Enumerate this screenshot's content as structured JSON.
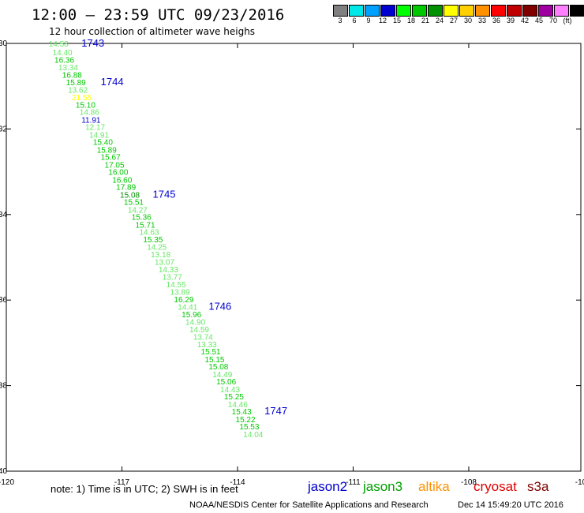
{
  "header": {
    "title": "12:00 — 23:59 UTC 09/23/2016",
    "subtitle": "12 hour collection of altimeter wave heighs"
  },
  "legend": {
    "colors": [
      "#808080",
      "#00e8e8",
      "#00a0ff",
      "#0000d0",
      "#00ff00",
      "#00c800",
      "#009000",
      "#ffff00",
      "#ffd000",
      "#ff9000",
      "#ff0000",
      "#c00000",
      "#800000",
      "#a000a0",
      "#ff80ff",
      "#000000"
    ],
    "labels": [
      "3",
      "6",
      "9",
      "12",
      "15",
      "18",
      "21",
      "24",
      "27",
      "30",
      "33",
      "36",
      "39",
      "42",
      "45",
      "70",
      "(ft)"
    ]
  },
  "chart_data": {
    "type": "scatter",
    "xlim": [
      -120,
      -10
    ],
    "ylim": [
      -40,
      -30
    ],
    "x_ticks": [
      "-120",
      "-117",
      "-114",
      "-111",
      "-108",
      "-10"
    ],
    "y_ticks": [
      "-30",
      "-32",
      "-34",
      "-36",
      "-38",
      "-40"
    ],
    "colors": {
      "light": "#66e866",
      "mid": "#00c800",
      "dark": "#009000",
      "blue": "#0000d0",
      "yellow": "#ffff00"
    },
    "points": [
      {
        "x": -118.9,
        "y": -30.0,
        "label": "14.58",
        "color": "light"
      },
      {
        "x": -118.8,
        "y": -30.2,
        "label": "14.40",
        "color": "light"
      },
      {
        "x": -118.75,
        "y": -30.38,
        "label": "16.36",
        "color": "mid"
      },
      {
        "x": -118.65,
        "y": -30.55,
        "label": "13.34",
        "color": "light"
      },
      {
        "x": -118.55,
        "y": -30.73,
        "label": "16.88",
        "color": "mid"
      },
      {
        "x": -118.45,
        "y": -30.9,
        "label": "15.89",
        "color": "mid"
      },
      {
        "x": -118.4,
        "y": -31.08,
        "label": "13.62",
        "color": "light"
      },
      {
        "x": -118.3,
        "y": -31.25,
        "label": "21.55",
        "color": "yellow"
      },
      {
        "x": -118.2,
        "y": -31.43,
        "label": "15.10",
        "color": "mid"
      },
      {
        "x": -118.1,
        "y": -31.6,
        "label": "14.86",
        "color": "light"
      },
      {
        "x": -118.05,
        "y": -31.78,
        "label": "11.91",
        "color": "blue"
      },
      {
        "x": -117.95,
        "y": -31.95,
        "label": "12.17",
        "color": "light"
      },
      {
        "x": -117.85,
        "y": -32.13,
        "label": "14.91",
        "color": "light"
      },
      {
        "x": -117.75,
        "y": -32.3,
        "label": "15.40",
        "color": "mid"
      },
      {
        "x": -117.65,
        "y": -32.48,
        "label": "15.89",
        "color": "mid"
      },
      {
        "x": -117.55,
        "y": -32.65,
        "label": "15.67",
        "color": "mid"
      },
      {
        "x": -117.45,
        "y": -32.83,
        "label": "17.05",
        "color": "mid"
      },
      {
        "x": -117.35,
        "y": -33.0,
        "label": "16.00",
        "color": "mid"
      },
      {
        "x": -117.25,
        "y": -33.18,
        "label": "16.60",
        "color": "mid"
      },
      {
        "x": -117.15,
        "y": -33.35,
        "label": "17.89",
        "color": "mid"
      },
      {
        "x": -117.05,
        "y": -33.53,
        "label": "15.08",
        "color": "dark"
      },
      {
        "x": -116.95,
        "y": -33.7,
        "label": "15.51",
        "color": "mid"
      },
      {
        "x": -116.85,
        "y": -33.88,
        "label": "14.27",
        "color": "light"
      },
      {
        "x": -116.75,
        "y": -34.05,
        "label": "15.36",
        "color": "mid"
      },
      {
        "x": -116.65,
        "y": -34.23,
        "label": "15.71",
        "color": "mid"
      },
      {
        "x": -116.55,
        "y": -34.4,
        "label": "14.63",
        "color": "light"
      },
      {
        "x": -116.45,
        "y": -34.58,
        "label": "15.35",
        "color": "mid"
      },
      {
        "x": -116.35,
        "y": -34.75,
        "label": "14.25",
        "color": "light"
      },
      {
        "x": -116.25,
        "y": -34.93,
        "label": "13.18",
        "color": "light"
      },
      {
        "x": -116.15,
        "y": -35.1,
        "label": "13.07",
        "color": "light"
      },
      {
        "x": -116.05,
        "y": -35.28,
        "label": "14.33",
        "color": "light"
      },
      {
        "x": -115.95,
        "y": -35.45,
        "label": "13.77",
        "color": "light"
      },
      {
        "x": -115.85,
        "y": -35.63,
        "label": "14.55",
        "color": "light"
      },
      {
        "x": -115.75,
        "y": -35.8,
        "label": "13.89",
        "color": "light"
      },
      {
        "x": -115.65,
        "y": -35.98,
        "label": "16.29",
        "color": "mid"
      },
      {
        "x": -115.55,
        "y": -36.15,
        "label": "14.41",
        "color": "light"
      },
      {
        "x": -115.45,
        "y": -36.33,
        "label": "15.96",
        "color": "mid"
      },
      {
        "x": -115.35,
        "y": -36.5,
        "label": "14.90",
        "color": "light"
      },
      {
        "x": -115.25,
        "y": -36.68,
        "label": "14.59",
        "color": "light"
      },
      {
        "x": -115.15,
        "y": -36.85,
        "label": "13.74",
        "color": "light"
      },
      {
        "x": -115.05,
        "y": -37.03,
        "label": "13.33",
        "color": "light"
      },
      {
        "x": -114.95,
        "y": -37.2,
        "label": "15.51",
        "color": "mid"
      },
      {
        "x": -114.85,
        "y": -37.38,
        "label": "15.15",
        "color": "mid"
      },
      {
        "x": -114.75,
        "y": -37.55,
        "label": "15.08",
        "color": "mid"
      },
      {
        "x": -114.65,
        "y": -37.73,
        "label": "14.49",
        "color": "light"
      },
      {
        "x": -114.55,
        "y": -37.9,
        "label": "15.06",
        "color": "mid"
      },
      {
        "x": -114.45,
        "y": -38.08,
        "label": "14.43",
        "color": "light"
      },
      {
        "x": -114.35,
        "y": -38.25,
        "label": "15.25",
        "color": "mid"
      },
      {
        "x": -114.25,
        "y": -38.43,
        "label": "14.46",
        "color": "light"
      },
      {
        "x": -114.15,
        "y": -38.6,
        "label": "15.43",
        "color": "mid"
      },
      {
        "x": -114.05,
        "y": -38.78,
        "label": "15.22",
        "color": "mid"
      },
      {
        "x": -113.95,
        "y": -38.95,
        "label": "15.53",
        "color": "mid"
      },
      {
        "x": -113.85,
        "y": -39.13,
        "label": "14.04",
        "color": "light"
      }
    ],
    "times": [
      {
        "label": "1743",
        "x": -118.05,
        "y": -30.0
      },
      {
        "label": "1744",
        "x": -117.55,
        "y": -30.9
      },
      {
        "label": "1745",
        "x": -116.2,
        "y": -33.53
      },
      {
        "label": "1746",
        "x": -114.75,
        "y": -36.15
      },
      {
        "label": "1747",
        "x": -113.3,
        "y": -38.6
      }
    ]
  },
  "footer": {
    "note": "note: 1) Time is in UTC; 2) SWH is in feet",
    "satellites": [
      {
        "name": "jason2",
        "color": "#0000d0"
      },
      {
        "name": "jason3",
        "color": "#00a000"
      },
      {
        "name": "altika",
        "color": "#ff9000"
      },
      {
        "name": "cryosat",
        "color": "#e00000"
      },
      {
        "name": "s3a",
        "color": "#800000"
      }
    ],
    "credit": "NOAA/NESDIS Center for Satellite Applications and Research",
    "timestamp": "Dec 14 15:49:20 UTC 2016"
  }
}
